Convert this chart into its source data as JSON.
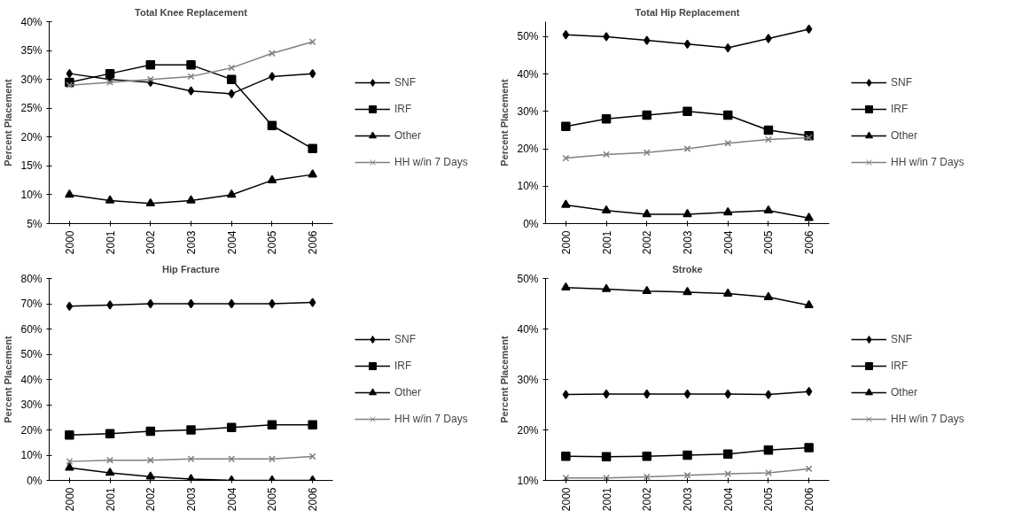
{
  "chart_data": [
    {
      "type": "line",
      "title": "Total Knee Replacement",
      "ylabel": "Percent Placement",
      "categories": [
        "2000",
        "2001",
        "2002",
        "2003",
        "2004",
        "2005",
        "2006"
      ],
      "ylim": [
        5,
        40
      ],
      "yticks": [
        {
          "value": 5,
          "label": "5%"
        },
        {
          "value": 10,
          "label": "10%"
        },
        {
          "value": 15,
          "label": "15%"
        },
        {
          "value": 20,
          "label": "20%"
        },
        {
          "value": 25,
          "label": "25%"
        },
        {
          "value": 30,
          "label": "30%"
        },
        {
          "value": 35,
          "label": "35%"
        },
        {
          "value": 40,
          "label": "40%"
        }
      ],
      "grid": false,
      "legend": "right",
      "series": [
        {
          "name": "SNF",
          "color": "#000000",
          "marker": "diamond",
          "values": [
            31,
            30,
            29.5,
            28,
            27.5,
            30.5,
            31
          ]
        },
        {
          "name": "IRF",
          "color": "#000000",
          "marker": "square",
          "values": [
            29.5,
            31,
            32.5,
            32.5,
            30,
            22,
            18
          ]
        },
        {
          "name": "Other",
          "color": "#000000",
          "marker": "triangle",
          "values": [
            10,
            9,
            8.5,
            9,
            10,
            12.5,
            13.5
          ]
        },
        {
          "name": "HH w/in 7 Days",
          "color": "#808080",
          "marker": "cross",
          "values": [
            29,
            29.5,
            30,
            30.5,
            32,
            34.5,
            36.5
          ]
        }
      ]
    },
    {
      "type": "line",
      "title": "Total Hip Replacement",
      "ylabel": "Percent Placement",
      "categories": [
        "2000",
        "2001",
        "2002",
        "2003",
        "2004",
        "2005",
        "2006"
      ],
      "ylim": [
        0,
        54
      ],
      "yticks": [
        {
          "value": 0,
          "label": "0%"
        },
        {
          "value": 10,
          "label": "10%"
        },
        {
          "value": 20,
          "label": "20%"
        },
        {
          "value": 30,
          "label": "30%"
        },
        {
          "value": 40,
          "label": "40%"
        },
        {
          "value": 50,
          "label": "50%"
        }
      ],
      "grid": false,
      "legend": "right",
      "series": [
        {
          "name": "SNF",
          "color": "#000000",
          "marker": "diamond",
          "values": [
            50.5,
            50,
            49,
            48,
            47,
            49.5,
            52
          ]
        },
        {
          "name": "IRF",
          "color": "#000000",
          "marker": "square",
          "values": [
            26,
            28,
            29,
            30,
            29,
            25,
            23.5
          ]
        },
        {
          "name": "Other",
          "color": "#000000",
          "marker": "triangle",
          "values": [
            5,
            3.5,
            2.5,
            2.5,
            3,
            3.5,
            1.5
          ]
        },
        {
          "name": "HH w/in 7 Days",
          "color": "#808080",
          "marker": "cross",
          "values": [
            17.5,
            18.5,
            19,
            20,
            21.5,
            22.5,
            23
          ]
        }
      ]
    },
    {
      "type": "line",
      "title": "Hip Fracture",
      "ylabel": "Percent Placement",
      "categories": [
        "2000",
        "2001",
        "2002",
        "2003",
        "2004",
        "2005",
        "2006"
      ],
      "ylim": [
        0,
        80
      ],
      "yticks": [
        {
          "value": 0,
          "label": "0%"
        },
        {
          "value": 10,
          "label": "10%"
        },
        {
          "value": 20,
          "label": "20%"
        },
        {
          "value": 30,
          "label": "30%"
        },
        {
          "value": 40,
          "label": "40%"
        },
        {
          "value": 50,
          "label": "50%"
        },
        {
          "value": 60,
          "label": "60%"
        },
        {
          "value": 70,
          "label": "70%"
        },
        {
          "value": 80,
          "label": "80%"
        }
      ],
      "grid": false,
      "legend": "right",
      "series": [
        {
          "name": "SNF",
          "color": "#000000",
          "marker": "diamond",
          "values": [
            69,
            69.5,
            70,
            70,
            70,
            70,
            70.5
          ]
        },
        {
          "name": "IRF",
          "color": "#000000",
          "marker": "square",
          "values": [
            18,
            18.5,
            19.5,
            20,
            21,
            22,
            22
          ]
        },
        {
          "name": "Other",
          "color": "#000000",
          "marker": "triangle",
          "values": [
            5,
            3,
            1.5,
            0.5,
            0,
            0,
            0
          ]
        },
        {
          "name": "HH w/in 7 Days",
          "color": "#808080",
          "marker": "cross",
          "values": [
            7.5,
            8,
            8,
            8.5,
            8.5,
            8.5,
            9.5
          ]
        }
      ]
    },
    {
      "type": "line",
      "title": "Stroke",
      "ylabel": "Percent Placement",
      "categories": [
        "2000",
        "2001",
        "2002",
        "2003",
        "2004",
        "2005",
        "2006"
      ],
      "ylim": [
        10,
        50
      ],
      "yticks": [
        {
          "value": 10,
          "label": "10%"
        },
        {
          "value": 20,
          "label": "20%"
        },
        {
          "value": 30,
          "label": "30%"
        },
        {
          "value": 40,
          "label": "40%"
        },
        {
          "value": 50,
          "label": "50%"
        }
      ],
      "grid": false,
      "legend": "right",
      "series": [
        {
          "name": "SNF",
          "color": "#000000",
          "marker": "diamond",
          "values": [
            27,
            27.1,
            27.1,
            27.1,
            27.1,
            27,
            27.6
          ]
        },
        {
          "name": "IRF",
          "color": "#000000",
          "marker": "square",
          "values": [
            14.8,
            14.7,
            14.8,
            15,
            15.2,
            16,
            16.5
          ]
        },
        {
          "name": "Other",
          "color": "#000000",
          "marker": "triangle",
          "values": [
            48.2,
            47.9,
            47.5,
            47.3,
            47,
            46.3,
            44.7
          ]
        },
        {
          "name": "HH w/in 7 Days",
          "color": "#808080",
          "marker": "cross",
          "values": [
            10.5,
            10.5,
            10.7,
            11,
            11.3,
            11.5,
            12.3
          ]
        }
      ]
    }
  ]
}
